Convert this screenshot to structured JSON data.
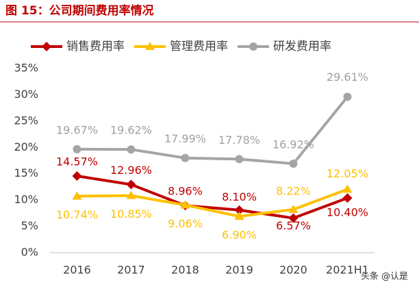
{
  "chart_data": {
    "type": "line",
    "title": "图 15：公司期间费用率情况",
    "categories": [
      "2016",
      "2017",
      "2018",
      "2019",
      "2020",
      "2021H1"
    ],
    "series": [
      {
        "name": "销售费用率",
        "color": "#c00000",
        "marker": "diamond",
        "values": [
          14.57,
          12.96,
          8.96,
          8.1,
          6.57,
          10.4
        ],
        "value_labels": [
          "14.57%",
          "12.96%",
          "8.96%",
          "8.10%",
          "6.57%",
          "10.40%"
        ]
      },
      {
        "name": "管理费用率",
        "color": "#ffc000",
        "marker": "triangle",
        "values": [
          10.74,
          10.85,
          9.06,
          6.9,
          8.22,
          12.05
        ],
        "value_labels": [
          "10.74%",
          "10.85%",
          "9.06%",
          "6.90%",
          "8.22%",
          "12.05%"
        ]
      },
      {
        "name": "研发费用率",
        "color": "#a5a5a5",
        "marker": "circle",
        "values": [
          19.67,
          19.62,
          17.99,
          17.78,
          16.92,
          29.61
        ],
        "value_labels": [
          "19.67%",
          "19.62%",
          "17.99%",
          "17.78%",
          "16.92%",
          "29.61%"
        ]
      }
    ],
    "ylim": [
      0,
      35
    ],
    "yticks": [
      {
        "value": 0,
        "label": "0%"
      },
      {
        "value": 5,
        "label": "5%"
      },
      {
        "value": 10,
        "label": "10%"
      },
      {
        "value": 15,
        "label": "15%"
      },
      {
        "value": 20,
        "label": "20%"
      },
      {
        "value": 25,
        "label": "25%"
      },
      {
        "value": 30,
        "label": "30%"
      },
      {
        "value": 35,
        "label": "35%"
      }
    ],
    "grid": false,
    "legend": "top",
    "watermark": "头条 @认是"
  }
}
